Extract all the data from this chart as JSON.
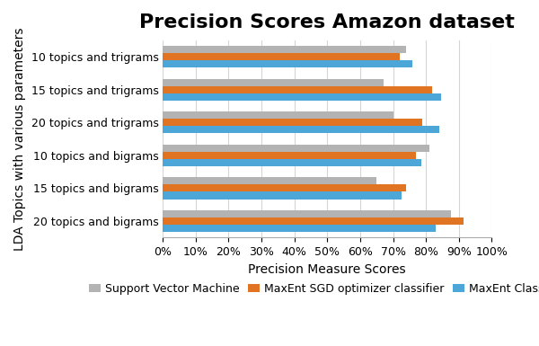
{
  "title": "Precision Scores Amazon dataset",
  "xlabel": "Precision Measure Scores",
  "ylabel": "LDA Topics with various parameters",
  "categories": [
    "20 topics and bigrams",
    "15 topics and bigrams",
    "10 topics and bigrams",
    "20 topics and trigrams",
    "15 topics and trigrams",
    "10 topics and trigrams"
  ],
  "series": [
    {
      "label": "Support Vector Machine",
      "color": "#b3b3b3",
      "values": [
        0.875,
        0.65,
        0.81,
        0.7,
        0.67,
        0.74
      ]
    },
    {
      "label": "MaxEnt SGD optimizer classifier",
      "color": "#e07422",
      "values": [
        0.915,
        0.74,
        0.77,
        0.79,
        0.82,
        0.72
      ]
    },
    {
      "label": "MaxEnt Classifier",
      "color": "#4da6d8",
      "values": [
        0.83,
        0.725,
        0.785,
        0.84,
        0.845,
        0.76
      ]
    }
  ],
  "xlim": [
    0,
    1.0
  ],
  "xticks": [
    0,
    0.1,
    0.2,
    0.3,
    0.4,
    0.5,
    0.6,
    0.7,
    0.8,
    0.9,
    1.0
  ],
  "background_color": "#ffffff",
  "grid_color": "#d5d5d5",
  "title_fontsize": 16,
  "label_fontsize": 10,
  "tick_fontsize": 9,
  "legend_fontsize": 9,
  "bar_height": 0.22
}
